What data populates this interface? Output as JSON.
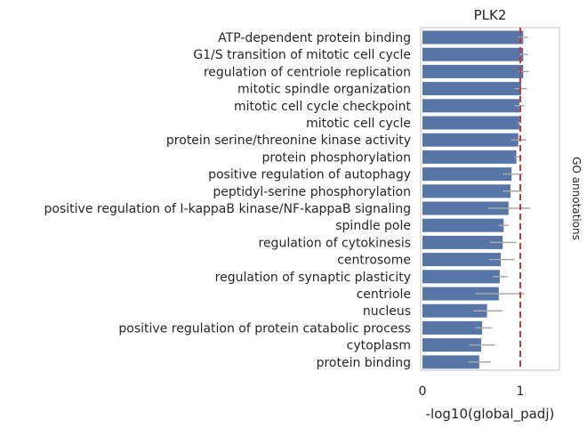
{
  "chart_data": {
    "type": "bar",
    "orientation": "horizontal",
    "title": "PLK2",
    "xlabel": "-log10(global_padj)",
    "side_label": "GO annotations",
    "xlim": [
      0,
      1.4
    ],
    "xticks": [
      0,
      1
    ],
    "threshold": 1.0,
    "colors": {
      "bar": "#5875a8",
      "error": "#a8a8a8",
      "threshold": "#c03a3a",
      "frame": "#cccccc"
    },
    "categories": [
      "ATP-dependent protein binding",
      "G1/S transition of mitotic cell cycle",
      "regulation of centriole replication",
      "mitotic spindle organization",
      "mitotic cell cycle checkpoint",
      "mitotic cell cycle",
      "protein serine/threonine kinase activity",
      "protein phosphorylation",
      "positive regulation of autophagy",
      "peptidyl-serine phosphorylation",
      "positive regulation of I-kappaB kinase/NF-kappaB signaling",
      "spindle pole",
      "regulation of cytokinesis",
      "centrosome",
      "regulation of synaptic plasticity",
      "centriole",
      "nucleus",
      "positive regulation of protein catabolic process",
      "cytoplasm",
      "protein binding"
    ],
    "values": [
      1.03,
      1.03,
      1.03,
      1.01,
      0.99,
      0.99,
      0.98,
      0.96,
      0.91,
      0.9,
      0.88,
      0.83,
      0.82,
      0.8,
      0.79,
      0.78,
      0.66,
      0.61,
      0.6,
      0.58
    ],
    "err_low": [
      0.98,
      0.99,
      0.98,
      0.94,
      0.94,
      0.97,
      0.91,
      0.94,
      0.82,
      0.82,
      0.67,
      0.78,
      0.69,
      0.68,
      0.72,
      0.54,
      0.52,
      0.54,
      0.48,
      0.47
    ],
    "err_high": [
      1.08,
      1.08,
      1.09,
      1.07,
      1.04,
      1.01,
      1.06,
      0.99,
      1.03,
      1.02,
      1.1,
      0.88,
      0.96,
      0.94,
      0.87,
      1.04,
      0.82,
      0.71,
      0.74,
      0.7
    ]
  }
}
